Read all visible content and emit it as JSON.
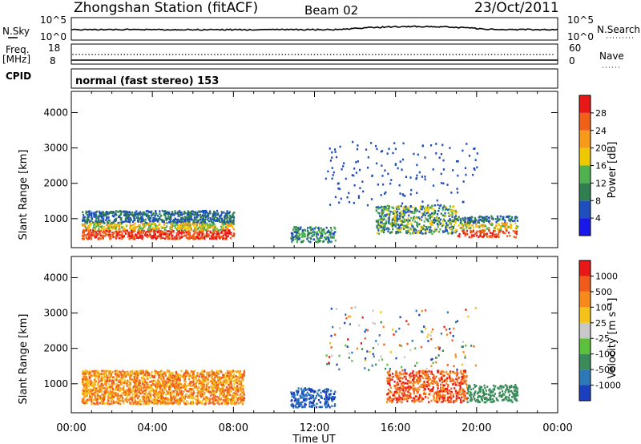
{
  "header": {
    "station": "Zhongshan Station (fitACF)",
    "beam": "Beam 02",
    "date": "23/Oct/2011"
  },
  "top_panels": {
    "nsky_label": "N.Sky",
    "nsky_ticks": [
      "10^5",
      "10^0"
    ],
    "nsearch_label": "N.Search",
    "nsearch_ticks": [
      "10^5",
      "10^0"
    ],
    "freq_label_1": "Freq.",
    "freq_label_2": "[MHz]",
    "freq_ticks": [
      "18",
      "8"
    ],
    "nave_label": "Nave",
    "nave_ticks": [
      "60",
      "0"
    ],
    "cpid_label": "CPID",
    "cpid_text": "normal (fast stereo) 153"
  },
  "chart_data": [
    {
      "type": "heatmap",
      "title": "",
      "xlabel": "Time UT",
      "ylabel": "Slant Range [km]",
      "x_ticks": [
        "00:00",
        "04:00",
        "08:00",
        "12:00",
        "16:00",
        "20:00",
        "00:00"
      ],
      "xlim_hours": [
        0,
        24
      ],
      "y_ticks": [
        "1000",
        "2000",
        "3000",
        "4000"
      ],
      "ylim_km": [
        180,
        4600
      ],
      "colorbar": {
        "label": "Power [dB]",
        "ticks": [
          "4",
          "8",
          "12",
          "16",
          "20",
          "24",
          "28"
        ],
        "colors": [
          "#1818e8",
          "#1f4fbf",
          "#2f7f4f",
          "#4fb24f",
          "#f0c800",
          "#f79a1a",
          "#f06018",
          "#e81818"
        ]
      }
    },
    {
      "type": "heatmap",
      "title": "",
      "xlabel": "Time UT",
      "ylabel": "Slant Range [km]",
      "x_ticks": [
        "00:00",
        "04:00",
        "08:00",
        "12:00",
        "16:00",
        "20:00",
        "00:00"
      ],
      "xlim_hours": [
        0,
        24
      ],
      "y_ticks": [
        "1000",
        "2000",
        "3000",
        "4000"
      ],
      "ylim_km": [
        180,
        4600
      ],
      "colorbar": {
        "label": "Velocity [m s⁻¹]",
        "ticks": [
          "1000",
          "500",
          "100",
          "25",
          "-25",
          "-100",
          "-500",
          "-1000"
        ],
        "colors": [
          "#1a3fbf",
          "#2f78b8",
          "#3a8a5a",
          "#5cc13a",
          "#c8c8c8",
          "#f5c21a",
          "#f78a1a",
          "#f05a1a",
          "#e81818"
        ]
      }
    }
  ]
}
